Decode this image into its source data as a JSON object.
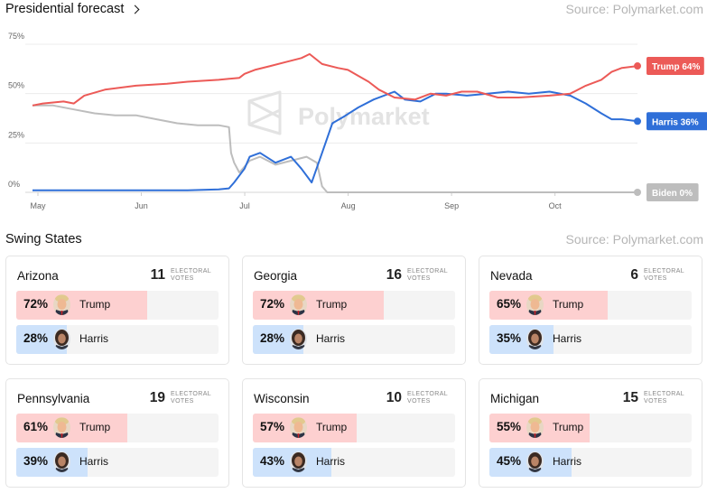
{
  "header": {
    "title": "Presidential forecast",
    "source": "Source: Polymarket.com"
  },
  "watermark": "Polymarket",
  "colors": {
    "trump": "#ec5a57",
    "harris": "#2f6fd8",
    "biden": "#bdbdbd",
    "trump_bar": "#fdd0d0",
    "harris_bar": "#cde2fb"
  },
  "chart_data": {
    "type": "line",
    "x_unit": "month",
    "x_ticks": [
      {
        "value": 5,
        "label": "May"
      },
      {
        "value": 6,
        "label": "Jun"
      },
      {
        "value": 7,
        "label": "Jul"
      },
      {
        "value": 8,
        "label": "Aug"
      },
      {
        "value": 9,
        "label": "Sep"
      },
      {
        "value": 10,
        "label": "Oct"
      }
    ],
    "y_ticks": [
      {
        "value": 0,
        "label": "0%"
      },
      {
        "value": 25,
        "label": "25%"
      },
      {
        "value": 50,
        "label": "50%"
      },
      {
        "value": 75,
        "label": "75%"
      }
    ],
    "xlim": [
      5,
      10.85
    ],
    "ylim": [
      0,
      75
    ],
    "grid": "horizontal",
    "series": [
      {
        "name": "Trump",
        "end_label": "Trump 64%",
        "color": "#ec5a57",
        "points": [
          [
            5.0,
            44
          ],
          [
            5.1,
            45
          ],
          [
            5.3,
            46
          ],
          [
            5.4,
            45
          ],
          [
            5.5,
            49
          ],
          [
            5.7,
            52
          ],
          [
            6.0,
            54
          ],
          [
            6.3,
            55
          ],
          [
            6.5,
            56
          ],
          [
            6.8,
            57
          ],
          [
            7.0,
            58
          ],
          [
            7.05,
            60
          ],
          [
            7.15,
            62
          ],
          [
            7.3,
            64
          ],
          [
            7.45,
            66
          ],
          [
            7.6,
            68
          ],
          [
            7.68,
            70
          ],
          [
            7.8,
            65
          ],
          [
            7.95,
            63
          ],
          [
            8.05,
            62
          ],
          [
            8.15,
            59
          ],
          [
            8.25,
            56
          ],
          [
            8.35,
            52
          ],
          [
            8.5,
            48
          ],
          [
            8.7,
            47
          ],
          [
            8.85,
            50
          ],
          [
            9.0,
            49
          ],
          [
            9.15,
            51
          ],
          [
            9.3,
            51
          ],
          [
            9.5,
            48
          ],
          [
            9.7,
            48
          ],
          [
            10.0,
            49
          ],
          [
            10.2,
            50
          ],
          [
            10.35,
            54
          ],
          [
            10.5,
            57
          ],
          [
            10.6,
            61
          ],
          [
            10.7,
            63
          ],
          [
            10.85,
            64
          ]
        ]
      },
      {
        "name": "Harris",
        "end_label": "Harris 36%",
        "color": "#2f6fd8",
        "points": [
          [
            5.0,
            1
          ],
          [
            5.5,
            1
          ],
          [
            6.0,
            1
          ],
          [
            6.5,
            1
          ],
          [
            6.8,
            1.5
          ],
          [
            6.9,
            2
          ],
          [
            6.95,
            5
          ],
          [
            7.05,
            12
          ],
          [
            7.1,
            18
          ],
          [
            7.2,
            20
          ],
          [
            7.35,
            15
          ],
          [
            7.5,
            18
          ],
          [
            7.6,
            12
          ],
          [
            7.7,
            5
          ],
          [
            7.8,
            20
          ],
          [
            7.9,
            35
          ],
          [
            8.0,
            38
          ],
          [
            8.15,
            43
          ],
          [
            8.3,
            47
          ],
          [
            8.5,
            51
          ],
          [
            8.6,
            47
          ],
          [
            8.75,
            46
          ],
          [
            8.9,
            50
          ],
          [
            9.0,
            50
          ],
          [
            9.2,
            49
          ],
          [
            9.4,
            50
          ],
          [
            9.6,
            51
          ],
          [
            9.8,
            50
          ],
          [
            10.0,
            51
          ],
          [
            10.2,
            49
          ],
          [
            10.35,
            45
          ],
          [
            10.5,
            40
          ],
          [
            10.6,
            37
          ],
          [
            10.7,
            37
          ],
          [
            10.85,
            36
          ]
        ]
      },
      {
        "name": "Biden",
        "end_label": "Biden 0%",
        "color": "#bdbdbd",
        "points": [
          [
            5.0,
            44
          ],
          [
            5.2,
            44
          ],
          [
            5.4,
            42
          ],
          [
            5.6,
            40
          ],
          [
            5.8,
            39
          ],
          [
            6.0,
            39
          ],
          [
            6.2,
            37
          ],
          [
            6.4,
            35
          ],
          [
            6.6,
            34
          ],
          [
            6.8,
            34
          ],
          [
            6.9,
            33
          ],
          [
            6.92,
            20
          ],
          [
            6.95,
            15
          ],
          [
            7.0,
            10
          ],
          [
            7.1,
            16
          ],
          [
            7.2,
            18
          ],
          [
            7.35,
            14
          ],
          [
            7.5,
            16
          ],
          [
            7.65,
            18
          ],
          [
            7.75,
            15
          ],
          [
            7.8,
            3
          ],
          [
            7.85,
            0
          ],
          [
            8.0,
            0
          ],
          [
            8.5,
            0
          ],
          [
            9.0,
            0
          ],
          [
            9.5,
            0
          ],
          [
            10.0,
            0
          ],
          [
            10.85,
            0
          ]
        ]
      }
    ]
  },
  "swing": {
    "title": "Swing States",
    "source": "Source: Polymarket.com",
    "ev_label": "ELECTORAL VOTES",
    "states": [
      {
        "name": "Arizona",
        "ev": "11",
        "trump_pct": "72%",
        "trump": 72,
        "harris_pct": "28%",
        "harris": 28,
        "trump_name": "Trump",
        "harris_name": "Harris"
      },
      {
        "name": "Georgia",
        "ev": "16",
        "trump_pct": "72%",
        "trump": 72,
        "harris_pct": "28%",
        "harris": 28,
        "trump_name": "Trump",
        "harris_name": "Harris"
      },
      {
        "name": "Nevada",
        "ev": "6",
        "trump_pct": "65%",
        "trump": 65,
        "harris_pct": "35%",
        "harris": 35,
        "trump_name": "Trump",
        "harris_name": "Harris"
      },
      {
        "name": "Pennsylvania",
        "ev": "19",
        "trump_pct": "61%",
        "trump": 61,
        "harris_pct": "39%",
        "harris": 39,
        "trump_name": "Trump",
        "harris_name": "Harris"
      },
      {
        "name": "Wisconsin",
        "ev": "10",
        "trump_pct": "57%",
        "trump": 57,
        "harris_pct": "43%",
        "harris": 43,
        "trump_name": "Trump",
        "harris_name": "Harris"
      },
      {
        "name": "Michigan",
        "ev": "15",
        "trump_pct": "55%",
        "trump": 55,
        "harris_pct": "45%",
        "harris": 45,
        "trump_name": "Trump",
        "harris_name": "Harris"
      }
    ]
  }
}
